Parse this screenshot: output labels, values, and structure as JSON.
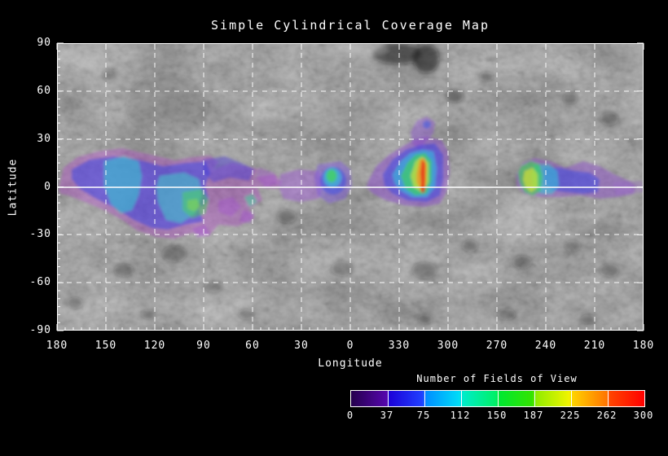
{
  "title": "Simple Cylindrical Coverage Map",
  "axes": {
    "x": {
      "label": "Longitude",
      "ticks": [
        "180",
        "150",
        "120",
        "90",
        "60",
        "30",
        "0",
        "330",
        "300",
        "270",
        "240",
        "210",
        "180"
      ]
    },
    "y": {
      "label": "Latitude",
      "ticks": [
        "90",
        "60",
        "30",
        "0",
        "-30",
        "-60",
        "-90"
      ]
    }
  },
  "colorbar": {
    "title": "Number of Fields of View",
    "ticks": [
      "0",
      "37",
      "75",
      "112",
      "150",
      "187",
      "225",
      "262",
      "300"
    ],
    "palette_hex": [
      "#25004d",
      "#1b00d8",
      "#0090ff",
      "#00ecc8",
      "#00e830",
      "#92ec00",
      "#ffd000",
      "#ff4400",
      "#ff0000"
    ]
  },
  "chart_data": {
    "type": "heatmap",
    "title": "Simple Cylindrical Coverage Map",
    "xlabel": "Longitude",
    "ylabel": "Latitude",
    "x_ticks_deg": [
      180,
      150,
      120,
      90,
      60,
      30,
      0,
      330,
      300,
      270,
      240,
      210,
      180
    ],
    "y_ticks_deg": [
      90,
      60,
      30,
      0,
      -30,
      -60,
      -90
    ],
    "x_axis_note": "west longitude, decreasing left to right and wrapping through 0/360",
    "ylim": [
      -90,
      90
    ],
    "grid": "white dashed lines every 30 degrees; solid white line at equator (lat 0)",
    "legend_position": "colorbar below plot, bottom right",
    "colorbar": {
      "label": "Number of Fields of View",
      "min": 0,
      "max": 300,
      "ticks": [
        0,
        37,
        75,
        112,
        150,
        187,
        225,
        262,
        300
      ],
      "palette": "rainbow (dark violet to red), 8 segments with white dividers"
    },
    "basemap": "grayscale simple-cylindrical planetary surface mosaic (cratered terrain)",
    "coverage_regions": [
      {
        "name": "large western patch",
        "lon_deg_range": [
          45,
          178
        ],
        "lat_deg_range": [
          -33,
          23
        ],
        "peak_fov": 160,
        "description": "broad patchwork of footprints, mostly 20-120 FOV (violet/blue/cyan) with green maxima near lon 140-95; fragmented violet edges east of lon 75"
      },
      {
        "name": "small equatorial patch",
        "lon_deg_range": [
          8,
          43
        ],
        "lat_deg_range": [
          -11,
          10
        ],
        "peak_fov": 150,
        "description": "violet band with a compact green/cyan core near lon 11, lat 5"
      },
      {
        "name": "high-coverage patch",
        "lon_deg_range": [
          300,
          350
        ],
        "lat_deg_range": [
          -11,
          33
        ],
        "peak_fov": 300,
        "description": "concentric rainbow fan with vertical red core stripe (~300 FOV) near lon 315, lat 0-25; faint violet wisp up to lat 33"
      },
      {
        "name": "eastern patch",
        "lon_deg_range": [
          187,
          258
        ],
        "lat_deg_range": [
          -8,
          16
        ],
        "peak_fov": 230,
        "description": "yellow/green maximum near lon 250 on the equator, fading eastward through cyan, blue and violet tail to lon ~190"
      }
    ]
  }
}
